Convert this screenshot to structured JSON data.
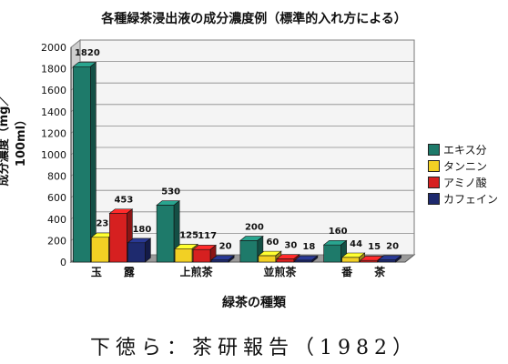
{
  "chart_data": {
    "type": "bar",
    "title": "各種緑茶浸出液の成分濃度例（標準的入れ方による）",
    "xlabel": "緑茶の種類",
    "ylabel": "成分濃度（mg／100ml）",
    "ylim": [
      0,
      2000
    ],
    "yticks": [
      0,
      200,
      400,
      600,
      800,
      1000,
      1200,
      1400,
      1600,
      1800,
      2000
    ],
    "categories": [
      "玉　　露",
      "上煎茶",
      "並煎茶",
      "番　　茶"
    ],
    "series": [
      {
        "name": "エキス分",
        "color": "#1e7a6a",
        "values": [
          1820,
          530,
          200,
          160
        ],
        "labels": [
          "1820",
          "530",
          "200",
          "160"
        ]
      },
      {
        "name": "タンニン",
        "color": "#f2d024",
        "values": [
          231,
          125,
          60,
          44
        ],
        "labels": [
          "231",
          "125",
          "60",
          "44"
        ]
      },
      {
        "name": "アミノ酸",
        "color": "#d62020",
        "values": [
          453,
          117,
          30,
          15
        ],
        "labels": [
          "453",
          "117",
          "30",
          "15"
        ]
      },
      {
        "name": "カフェイン",
        "color": "#1e2a6e",
        "values": [
          180,
          20,
          18,
          20
        ],
        "labels": [
          "180",
          "20",
          "18",
          "20"
        ]
      }
    ],
    "legend_position": "right",
    "grid": true
  },
  "source_text": "下徳ら：茶研報告（1982）"
}
